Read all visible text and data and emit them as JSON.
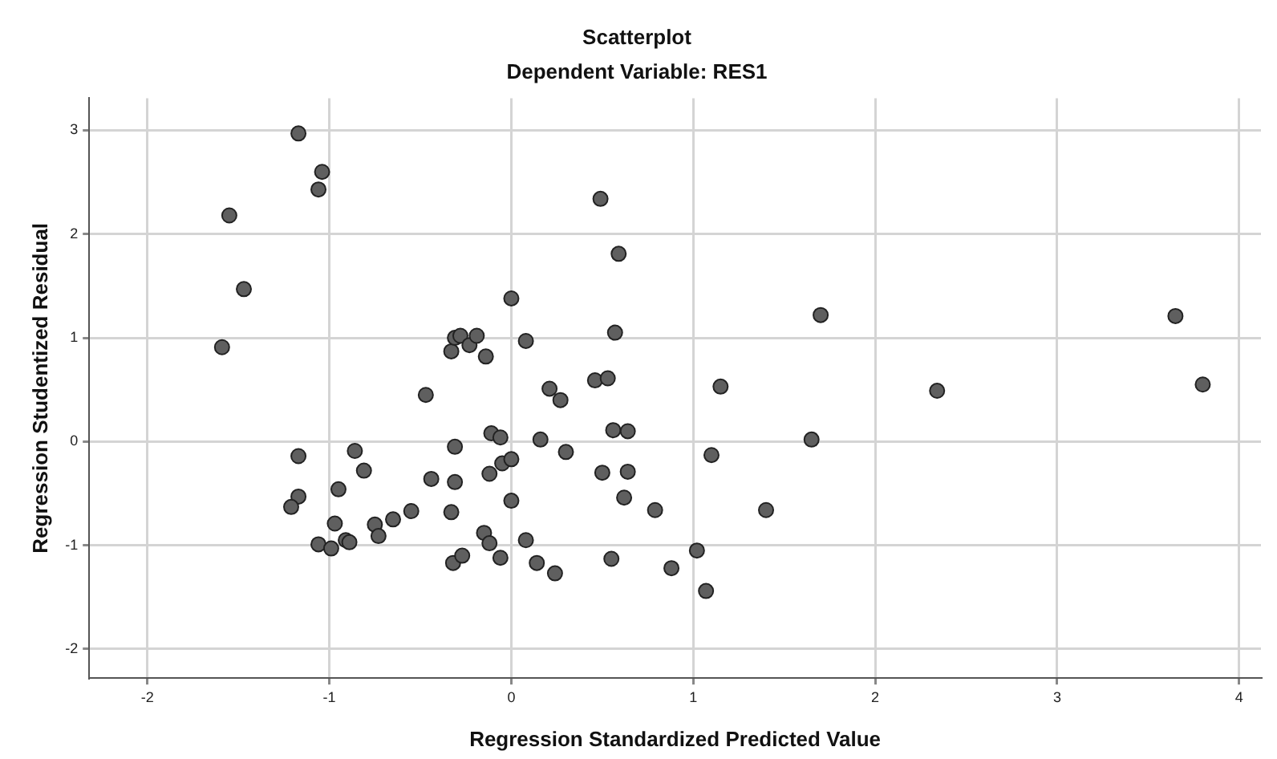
{
  "chart_data": {
    "type": "scatter",
    "title": "Scatterplot",
    "subtitle": "Dependent Variable: RES1",
    "xlabel": "Regression Standardized Predicted Value",
    "ylabel": "Regression Studentized Residual",
    "xlim": [
      -2.32,
      4.12
    ],
    "ylim": [
      -2.28,
      3.31
    ],
    "xticks": [
      -2,
      -1,
      0,
      1,
      2,
      3,
      4
    ],
    "yticks": [
      -2,
      -1,
      0,
      1,
      2,
      3
    ],
    "grid": true,
    "marker": "circle",
    "series": [
      {
        "color": "#5f5f5f",
        "x": [
          -1.17,
          -1.04,
          -1.06,
          -1.55,
          -1.47,
          -1.59,
          -0.47,
          -1.17,
          -0.86,
          -0.81,
          -0.95,
          -1.17,
          -1.21,
          -0.97,
          -0.75,
          -0.73,
          -0.65,
          -0.55,
          -1.06,
          -0.99,
          -0.91,
          -0.89,
          -0.44,
          -0.33,
          -0.31,
          -0.31,
          0.49,
          0.59,
          0.0,
          0.57,
          0.08,
          -0.33,
          -0.31,
          -0.28,
          -0.23,
          -0.19,
          -0.14,
          0.21,
          0.27,
          0.46,
          0.53,
          1.15,
          -0.11,
          -0.06,
          0.16,
          0.56,
          0.64,
          0.3,
          1.1,
          -0.12,
          -0.05,
          0.0,
          0.5,
          0.64,
          0.0,
          0.62,
          0.79,
          1.4,
          -0.15,
          -0.12,
          0.08,
          -0.32,
          -0.27,
          -0.06,
          0.14,
          0.24,
          0.55,
          0.88,
          1.02,
          1.07,
          1.7,
          2.34,
          1.65,
          3.65,
          3.8
        ],
        "values": [
          2.97,
          2.6,
          2.43,
          2.18,
          1.47,
          0.91,
          0.45,
          -0.14,
          -0.09,
          -0.28,
          -0.46,
          -0.53,
          -0.63,
          -0.79,
          -0.8,
          -0.91,
          -0.75,
          -0.67,
          -0.99,
          -1.03,
          -0.95,
          -0.97,
          -0.36,
          -0.68,
          -0.39,
          -0.05,
          2.34,
          1.81,
          1.38,
          1.05,
          0.97,
          0.87,
          1.0,
          1.02,
          0.93,
          1.02,
          0.82,
          0.51,
          0.4,
          0.59,
          0.61,
          0.53,
          0.08,
          0.04,
          0.02,
          0.11,
          0.1,
          -0.1,
          -0.13,
          -0.31,
          -0.21,
          -0.17,
          -0.3,
          -0.29,
          -0.57,
          -0.54,
          -0.66,
          -0.66,
          -0.88,
          -0.98,
          -0.95,
          -1.17,
          -1.1,
          -1.12,
          -1.17,
          -1.27,
          -1.13,
          -1.22,
          -1.05,
          -1.44,
          1.22,
          0.49,
          0.02,
          1.21,
          0.55
        ]
      }
    ]
  }
}
